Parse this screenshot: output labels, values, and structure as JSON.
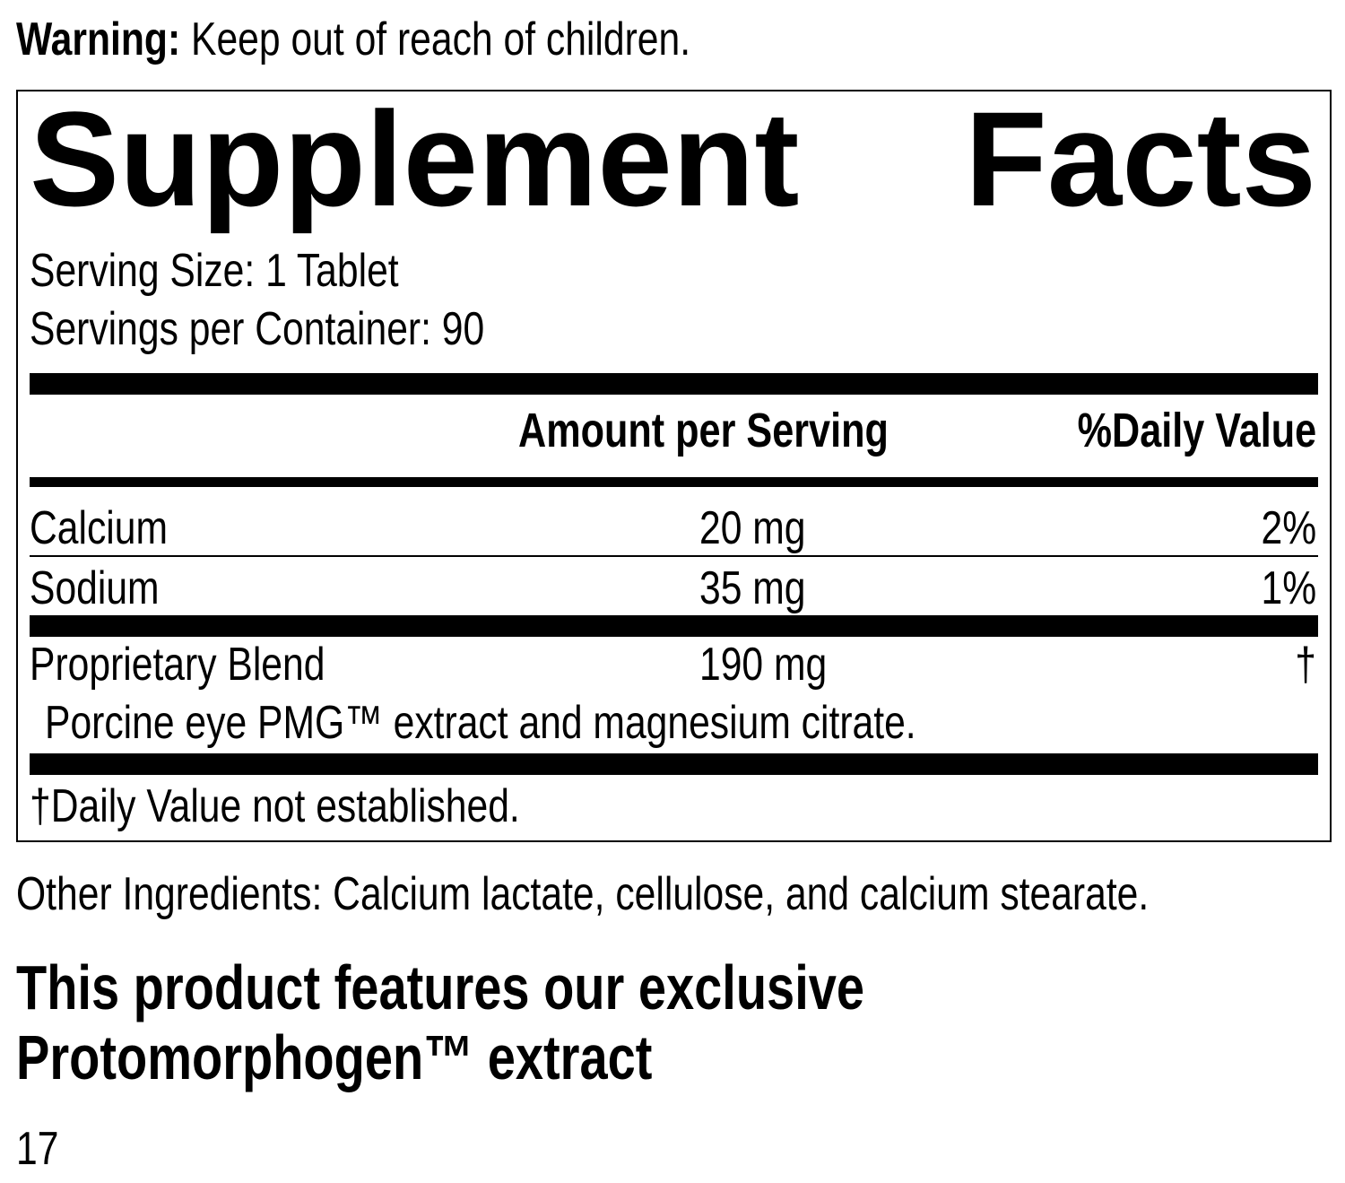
{
  "warning": {
    "label": "Warning:",
    "text": "Keep out of reach of children."
  },
  "facts": {
    "title": "Supplement Facts",
    "serving_size": "Serving Size: 1 Tablet",
    "servings_per_container": "Servings per Container: 90",
    "header": {
      "amount": "Amount per Serving",
      "daily_value": "%Daily Value"
    },
    "rows": [
      {
        "name": "Calcium",
        "amount": "20 mg",
        "daily_value": "2%"
      },
      {
        "name": "Sodium",
        "amount": "35 mg",
        "daily_value": "1%"
      },
      {
        "name": "Proprietary Blend",
        "amount": "190 mg",
        "daily_value": "†",
        "description": "Porcine eye PMG™ extract and magnesium citrate."
      }
    ],
    "footnote": "†Daily Value not established."
  },
  "other_ingredients": "Other Ingredients: Calcium lactate, cellulose, and calcium stearate.",
  "feature": [
    "This product features our exclusive",
    "Protomorphogen™ extract"
  ],
  "page_number": "17"
}
